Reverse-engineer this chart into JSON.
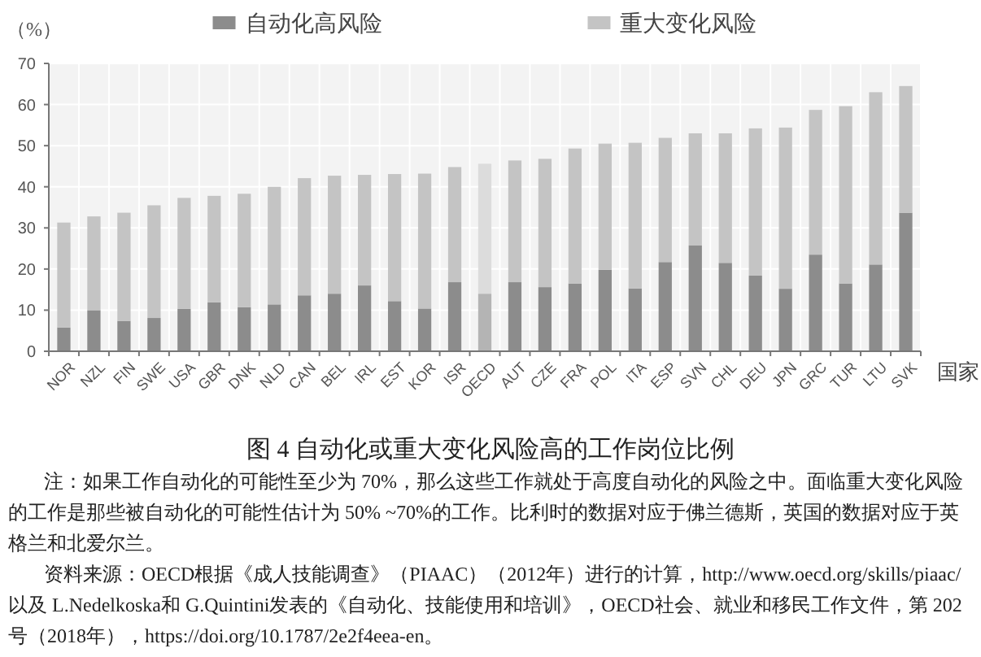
{
  "chart_data": {
    "type": "bar",
    "stacked": true,
    "title": "图 4  自动化或重大变化风险高的工作岗位比例",
    "ylabel": "（%）",
    "xlabel": "国家",
    "categories": [
      "NOR",
      "NZL",
      "FIN",
      "SWE",
      "USA",
      "GBR",
      "DNK",
      "NLD",
      "CAN",
      "BEL",
      "IRL",
      "EST",
      "KOR",
      "ISR",
      "OECD",
      "AUT",
      "CZE",
      "FRA",
      "POL",
      "ITA",
      "ESP",
      "SVN",
      "CHL",
      "DEU",
      "JPN",
      "GRC",
      "TUR",
      "LTU",
      "SVK"
    ],
    "series": [
      {
        "name": "自动化高风险",
        "color": "#8c8c8c",
        "colors": [
          "#8c8c8c",
          "#8c8c8c",
          "#8c8c8c",
          "#8c8c8c",
          "#8c8c8c",
          "#8c8c8c",
          "#8c8c8c",
          "#8c8c8c",
          "#8c8c8c",
          "#8c8c8c",
          "#8c8c8c",
          "#8c8c8c",
          "#8c8c8c",
          "#8c8c8c",
          "#b4b4b4",
          "#8c8c8c",
          "#8c8c8c",
          "#8c8c8c",
          "#8c8c8c",
          "#8c8c8c",
          "#8c8c8c",
          "#8c8c8c",
          "#8c8c8c",
          "#8c8c8c",
          "#8c8c8c",
          "#8c8c8c",
          "#8c8c8c",
          "#8c8c8c",
          "#8c8c8c"
        ],
        "values": [
          5.8,
          10.0,
          7.4,
          8.1,
          10.3,
          11.9,
          10.7,
          11.4,
          13.6,
          14.0,
          16.0,
          12.2,
          10.4,
          16.8,
          14.0,
          16.8,
          15.6,
          16.5,
          19.8,
          15.3,
          21.7,
          25.8,
          21.5,
          18.4,
          15.2,
          23.5,
          16.5,
          21.1,
          33.7
        ]
      },
      {
        "name": "重大变化风险",
        "color": "#c4c4c4",
        "colors": [
          "#c4c4c4",
          "#c4c4c4",
          "#c4c4c4",
          "#c4c4c4",
          "#c4c4c4",
          "#c4c4c4",
          "#c4c4c4",
          "#c4c4c4",
          "#c4c4c4",
          "#c4c4c4",
          "#c4c4c4",
          "#c4c4c4",
          "#c4c4c4",
          "#c4c4c4",
          "#dcdcdc",
          "#c4c4c4",
          "#c4c4c4",
          "#c4c4c4",
          "#c4c4c4",
          "#c4c4c4",
          "#c4c4c4",
          "#c4c4c4",
          "#c4c4c4",
          "#c4c4c4",
          "#c4c4c4",
          "#c4c4c4",
          "#c4c4c4",
          "#c4c4c4",
          "#c4c4c4"
        ],
        "values": [
          25.5,
          22.8,
          26.3,
          27.4,
          27.0,
          25.9,
          27.6,
          28.6,
          28.5,
          28.7,
          26.9,
          30.9,
          32.8,
          28.0,
          31.6,
          29.6,
          31.2,
          32.8,
          30.7,
          35.4,
          30.2,
          27.2,
          31.5,
          35.8,
          39.2,
          35.2,
          43.1,
          41.9,
          30.8
        ]
      }
    ],
    "ylim": [
      0,
      70
    ],
    "yticks": [
      0,
      10,
      20,
      30,
      40,
      50,
      60,
      70
    ],
    "grid": true,
    "legend": "top",
    "annotations": [
      "注：如果工作自动化的可能性至少为 70%，那么这些工作就处于高度自动化的风险之中。面临重大变化风险的工作是那些被自动化的可能性估计为 50% ~70%的工作。比利时的数据对应于佛兰德斯，英国的数据对应于英格兰和北爱尔兰。",
      "资料来源：OECD根据《成人技能调查》（PIAAC）（2012年）进行的计算，http://www.oecd.org/skills/piaac/以及 L.Nedelkoska和 G.Quintini发表的《自动化、技能使用和培训》，OECD社会、就业和移民工作文件，第 202号（2018年），https://doi.org/10.1787/2e2f4eea-en。"
    ]
  }
}
